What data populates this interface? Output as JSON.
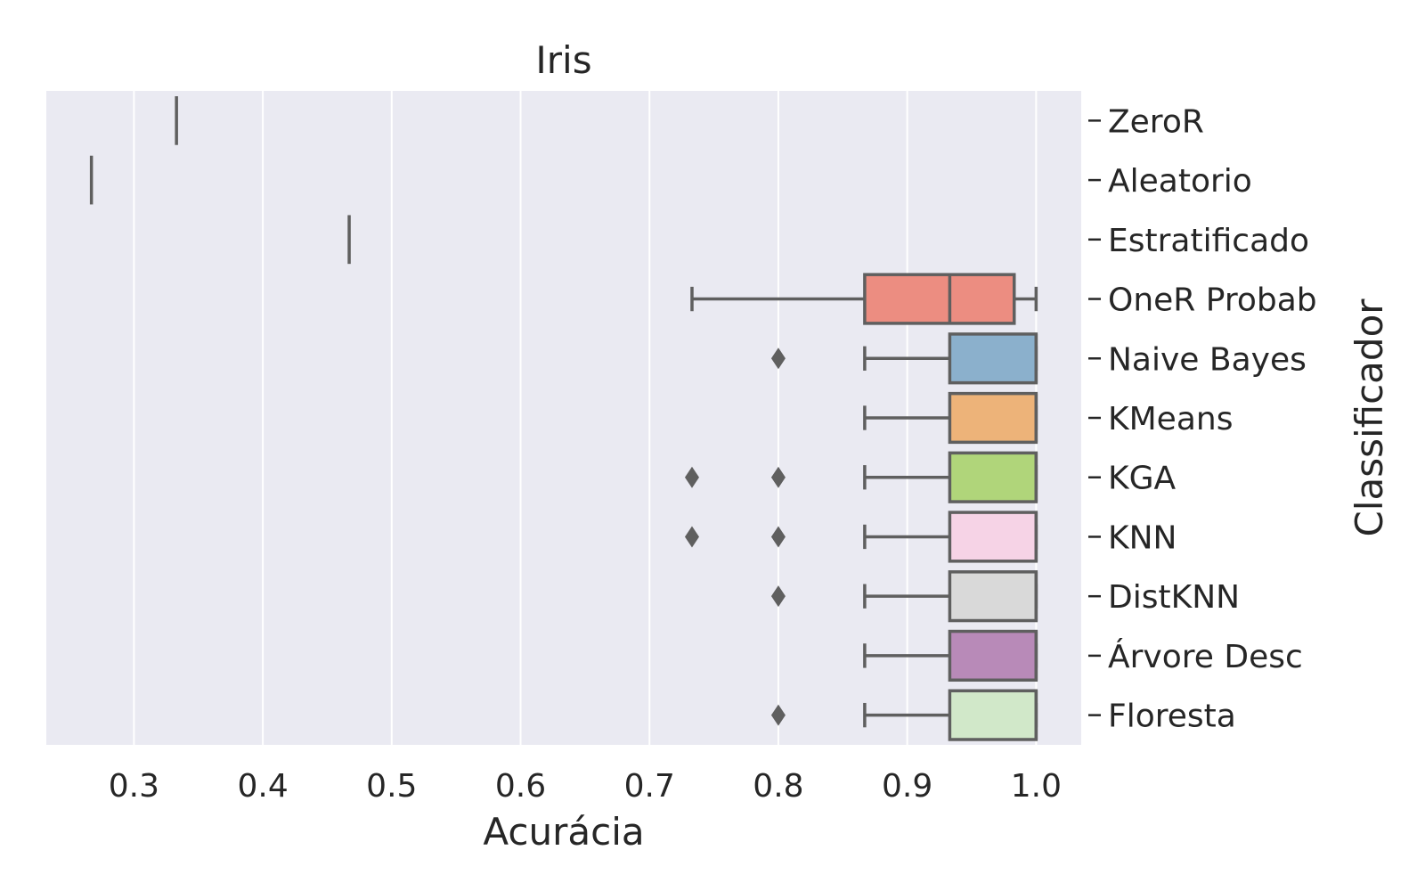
{
  "chart_data": {
    "type": "boxplot",
    "orientation": "horizontal",
    "title": "Iris",
    "xlabel": "Acurácia",
    "ylabel": "Classificador",
    "xlim": [
      0.232,
      1.035
    ],
    "xticks": [
      0.3,
      0.4,
      0.5,
      0.6,
      0.7,
      0.8,
      0.9,
      1.0
    ],
    "xtick_labels": [
      "0.3",
      "0.4",
      "0.5",
      "0.6",
      "0.7",
      "0.8",
      "0.9",
      "1.0"
    ],
    "y_axis_side": "right",
    "grid": true,
    "series": [
      {
        "name": "ZeroR",
        "min": 0.333,
        "q1": 0.333,
        "median": 0.333,
        "q3": 0.333,
        "max": 0.333,
        "outliers": [],
        "color": "#5f5f5f"
      },
      {
        "name": "Aleatorio",
        "min": 0.267,
        "q1": 0.267,
        "median": 0.267,
        "q3": 0.267,
        "max": 0.267,
        "outliers": [],
        "color": "#5f5f5f"
      },
      {
        "name": "Estratificado",
        "min": 0.467,
        "q1": 0.467,
        "median": 0.467,
        "q3": 0.467,
        "max": 0.467,
        "outliers": [],
        "color": "#5f5f5f"
      },
      {
        "name": "OneR Probab",
        "min": 0.733,
        "q1": 0.867,
        "median": 0.933,
        "q3": 0.983,
        "max": 1.0,
        "outliers": [],
        "color": "#ec8d81"
      },
      {
        "name": "Naive Bayes",
        "min": 0.867,
        "q1": 0.933,
        "median": 1.0,
        "q3": 1.0,
        "max": 1.0,
        "outliers": [
          0.8
        ],
        "color": "#8bb0cc"
      },
      {
        "name": "KMeans",
        "min": 0.867,
        "q1": 0.933,
        "median": 1.0,
        "q3": 1.0,
        "max": 1.0,
        "outliers": [],
        "color": "#edb379"
      },
      {
        "name": "KGA",
        "min": 0.867,
        "q1": 0.933,
        "median": 1.0,
        "q3": 1.0,
        "max": 1.0,
        "outliers": [
          0.733,
          0.8
        ],
        "color": "#b0d57a"
      },
      {
        "name": "KNN",
        "min": 0.867,
        "q1": 0.933,
        "median": 1.0,
        "q3": 1.0,
        "max": 1.0,
        "outliers": [
          0.733,
          0.8
        ],
        "color": "#f6d3e6"
      },
      {
        "name": "DistKNN",
        "min": 0.867,
        "q1": 0.933,
        "median": 1.0,
        "q3": 1.0,
        "max": 1.0,
        "outliers": [
          0.8
        ],
        "color": "#d9d9d9"
      },
      {
        "name": "Árvore Desc",
        "min": 0.867,
        "q1": 0.933,
        "median": 1.0,
        "q3": 1.0,
        "max": 1.0,
        "outliers": [],
        "color": "#b88ab8"
      },
      {
        "name": "Floresta",
        "min": 0.867,
        "q1": 0.933,
        "median": 1.0,
        "q3": 1.0,
        "max": 1.0,
        "outliers": [
          0.8
        ],
        "color": "#d1e8c9"
      }
    ]
  }
}
